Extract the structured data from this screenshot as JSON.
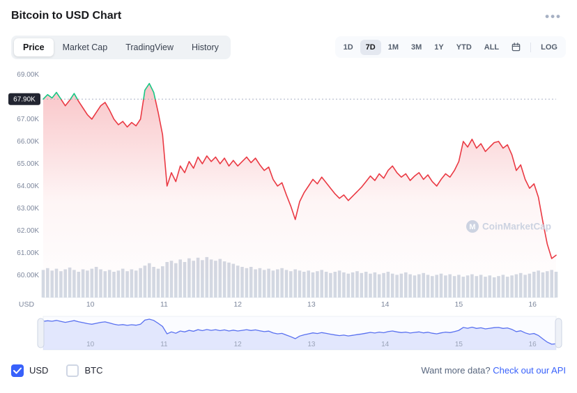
{
  "header": {
    "title": "Bitcoin to USD Chart",
    "more_options": "•••"
  },
  "tabs": {
    "items": [
      {
        "label": "Price",
        "active": true
      },
      {
        "label": "Market Cap",
        "active": false
      },
      {
        "label": "TradingView",
        "active": false
      },
      {
        "label": "History",
        "active": false
      }
    ]
  },
  "range_controls": {
    "items": [
      "1D",
      "7D",
      "1M",
      "3M",
      "1Y",
      "YTD",
      "ALL"
    ],
    "active": "7D",
    "log_label": "LOG"
  },
  "watermark": {
    "text": "CoinMarketCap"
  },
  "footer": {
    "currency_toggles": [
      {
        "label": "USD",
        "checked": true
      },
      {
        "label": "BTC",
        "checked": false
      }
    ],
    "cta_text": "Want more data?",
    "cta_link": "Check out our API"
  },
  "chart_data": {
    "type": "line",
    "title": "Bitcoin to USD Chart",
    "unit_label": "USD",
    "x_ticks": [
      10,
      11,
      12,
      13,
      14,
      15,
      16
    ],
    "x_range": [
      9.36,
      16.32
    ],
    "x_unit": "day of month",
    "y_axis_labels": [
      "69.00K",
      "67.90K",
      "67.00K",
      "66.00K",
      "65.00K",
      "64.00K",
      "63.00K",
      "62.00K",
      "61.00K",
      "60.00K"
    ],
    "ylim_k": [
      59.6,
      69.4
    ],
    "open_label": "67.90K",
    "open_value_k": 67.9,
    "grid": "off",
    "legend": "none",
    "series": [
      {
        "name": "BTC price (thousand USD)",
        "values": [
          67.9,
          68.1,
          67.95,
          68.2,
          67.9,
          67.6,
          67.85,
          68.15,
          67.8,
          67.5,
          67.2,
          67.0,
          67.3,
          67.6,
          67.75,
          67.4,
          67.0,
          66.75,
          66.9,
          66.65,
          66.85,
          66.7,
          67.0,
          68.3,
          68.6,
          68.2,
          67.3,
          66.3,
          64.0,
          64.6,
          64.2,
          64.9,
          64.6,
          65.1,
          64.8,
          65.3,
          65.0,
          65.35,
          65.1,
          65.3,
          65.0,
          65.25,
          64.9,
          65.15,
          64.9,
          65.1,
          65.3,
          65.05,
          65.25,
          64.95,
          64.7,
          64.85,
          64.3,
          64.0,
          64.15,
          63.6,
          63.1,
          62.5,
          63.3,
          63.7,
          64.0,
          64.3,
          64.1,
          64.4,
          64.15,
          63.9,
          63.65,
          63.45,
          63.6,
          63.35,
          63.55,
          63.75,
          63.95,
          64.2,
          64.45,
          64.25,
          64.55,
          64.35,
          64.7,
          64.9,
          64.6,
          64.4,
          64.55,
          64.25,
          64.45,
          64.6,
          64.3,
          64.5,
          64.2,
          64.0,
          64.3,
          64.55,
          64.4,
          64.7,
          65.1,
          66.0,
          65.75,
          66.1,
          65.7,
          65.9,
          65.55,
          65.75,
          65.95,
          66.0,
          65.7,
          65.85,
          65.4,
          64.7,
          64.95,
          64.3,
          63.9,
          64.1,
          63.5,
          62.4,
          61.4,
          60.75,
          60.9
        ]
      }
    ],
    "volume_normalized": [
      0.45,
      0.48,
      0.44,
      0.47,
      0.43,
      0.46,
      0.49,
      0.45,
      0.42,
      0.46,
      0.44,
      0.47,
      0.5,
      0.46,
      0.43,
      0.45,
      0.42,
      0.44,
      0.47,
      0.43,
      0.46,
      0.44,
      0.48,
      0.52,
      0.56,
      0.5,
      0.47,
      0.51,
      0.58,
      0.6,
      0.56,
      0.62,
      0.58,
      0.64,
      0.6,
      0.65,
      0.61,
      0.66,
      0.62,
      0.6,
      0.63,
      0.59,
      0.57,
      0.55,
      0.52,
      0.5,
      0.48,
      0.5,
      0.46,
      0.48,
      0.45,
      0.47,
      0.44,
      0.46,
      0.48,
      0.45,
      0.43,
      0.46,
      0.44,
      0.42,
      0.44,
      0.41,
      0.43,
      0.45,
      0.42,
      0.4,
      0.42,
      0.44,
      0.41,
      0.39,
      0.41,
      0.43,
      0.4,
      0.42,
      0.39,
      0.41,
      0.38,
      0.4,
      0.42,
      0.39,
      0.37,
      0.39,
      0.41,
      0.38,
      0.36,
      0.38,
      0.4,
      0.37,
      0.35,
      0.37,
      0.39,
      0.36,
      0.38,
      0.35,
      0.37,
      0.34,
      0.36,
      0.38,
      0.35,
      0.37,
      0.34,
      0.36,
      0.33,
      0.35,
      0.37,
      0.34,
      0.36,
      0.38,
      0.4,
      0.37,
      0.39,
      0.42,
      0.44,
      0.41,
      0.43,
      0.45,
      0.42
    ],
    "colors": {
      "up": "#16c784",
      "down": "#ea3943",
      "volume": "#d3d9e3",
      "navigator_line": "#5870f0",
      "navigator_fill": "rgba(88,112,240,0.15)",
      "axis_text": "#7d879c",
      "open_badge_bg": "#222531"
    }
  }
}
